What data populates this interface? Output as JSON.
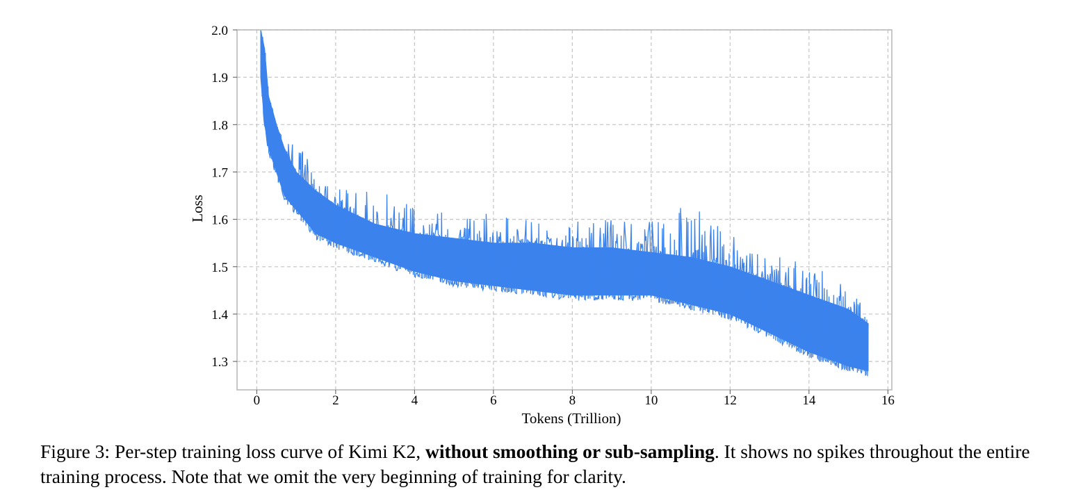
{
  "chart_data": {
    "type": "line",
    "xlabel": "Tokens (Trillion)",
    "ylabel": "Loss",
    "xlim": [
      -0.5,
      16.1
    ],
    "ylim": [
      1.24,
      2.0
    ],
    "x_ticks": [
      0,
      2,
      4,
      6,
      8,
      10,
      12,
      14,
      16
    ],
    "y_ticks": [
      1.3,
      1.4,
      1.5,
      1.6,
      1.7,
      1.8,
      1.9,
      2.0
    ],
    "grid": true,
    "legend": "none",
    "series": [
      {
        "color": "#3b82ed",
        "x": [
          0.1,
          0.2,
          0.3,
          0.5,
          0.7,
          1.0,
          1.5,
          2.0,
          3.0,
          4.0,
          5.0,
          6.0,
          7.0,
          8.0,
          9.0,
          10.0,
          11.0,
          12.0,
          13.0,
          14.0,
          15.0,
          15.5
        ],
        "lower": [
          1.9,
          1.8,
          1.75,
          1.7,
          1.65,
          1.62,
          1.57,
          1.55,
          1.52,
          1.49,
          1.47,
          1.46,
          1.45,
          1.44,
          1.44,
          1.44,
          1.42,
          1.4,
          1.36,
          1.32,
          1.29,
          1.28
        ],
        "upper": [
          2.0,
          1.96,
          1.86,
          1.8,
          1.75,
          1.7,
          1.66,
          1.63,
          1.59,
          1.57,
          1.56,
          1.55,
          1.55,
          1.54,
          1.54,
          1.53,
          1.52,
          1.5,
          1.47,
          1.44,
          1.41,
          1.38
        ],
        "spike_peak": [
          2.0,
          1.98,
          1.9,
          1.82,
          1.78,
          1.76,
          1.72,
          1.67,
          1.67,
          1.64,
          1.63,
          1.61,
          1.6,
          1.6,
          1.6,
          1.61,
          1.64,
          1.57,
          1.53,
          1.51,
          1.47,
          1.4
        ]
      }
    ]
  },
  "caption": {
    "prefix": "Figure 3: Per-step training loss curve of Kimi K2, ",
    "bold": "without smoothing or sub-sampling",
    "suffix": ". It shows no spikes throughout the entire training process. Note that we omit the very beginning of training for clarity."
  }
}
